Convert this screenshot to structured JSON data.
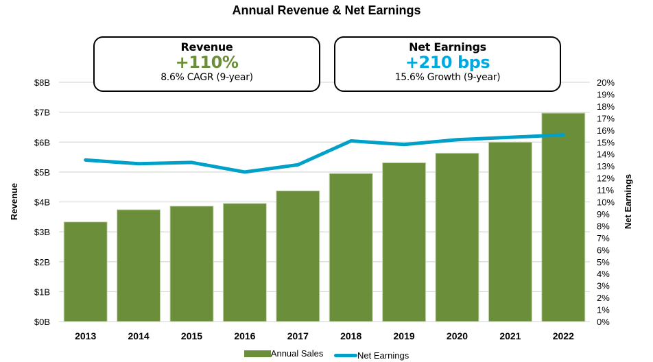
{
  "colors": {
    "bar": "#6B8E3A",
    "bar_border": "#C9D8B4",
    "line": "#00A0C8",
    "grid": "#D9D9D9",
    "revenue_kpi": "#6B8E3A",
    "earnings_kpi": "#00A8E0"
  },
  "kpis": {
    "revenue": {
      "title": "Revenue",
      "value": "+110%",
      "sub": "8.6% CAGR (9-year)"
    },
    "earnings": {
      "title": "Net Earnings",
      "value": "+210 bps",
      "sub": "15.6% Growth (9-year)"
    }
  },
  "chart_data": {
    "type": "bar",
    "title": "Annual Revenue & Net Earnings",
    "xlabel": "",
    "ylabel": "Revenue",
    "y2label": "Net Earnings",
    "categories": [
      "2013",
      "2014",
      "2015",
      "2016",
      "2017",
      "2018",
      "2019",
      "2020",
      "2021",
      "2022"
    ],
    "series": [
      {
        "name": "Annual Sales",
        "type": "bar",
        "axis": "left",
        "unit": "$B",
        "values": [
          3.33,
          3.74,
          3.86,
          3.95,
          4.37,
          4.95,
          5.31,
          5.63,
          6.0,
          6.97
        ]
      },
      {
        "name": "Net Earnings",
        "type": "line",
        "axis": "right",
        "unit": "%",
        "values": [
          13.5,
          13.2,
          13.3,
          12.5,
          13.1,
          15.1,
          14.8,
          15.2,
          15.4,
          15.6
        ]
      }
    ],
    "ylim": [
      0,
      8
    ],
    "y2lim": [
      0,
      20
    ],
    "yticks": [
      "$0B",
      "$1B",
      "$2B",
      "$3B",
      "$4B",
      "$5B",
      "$6B",
      "$7B",
      "$8B"
    ],
    "y2ticks": [
      "0%",
      "1%",
      "2%",
      "3%",
      "4%",
      "5%",
      "6%",
      "7%",
      "8%",
      "9%",
      "10%",
      "11%",
      "12%",
      "13%",
      "14%",
      "15%",
      "16%",
      "17%",
      "18%",
      "19%",
      "20%"
    ],
    "grid": true,
    "legend": {
      "position": "bottom",
      "entries": [
        "Annual Sales",
        "Net Earnings"
      ]
    }
  }
}
